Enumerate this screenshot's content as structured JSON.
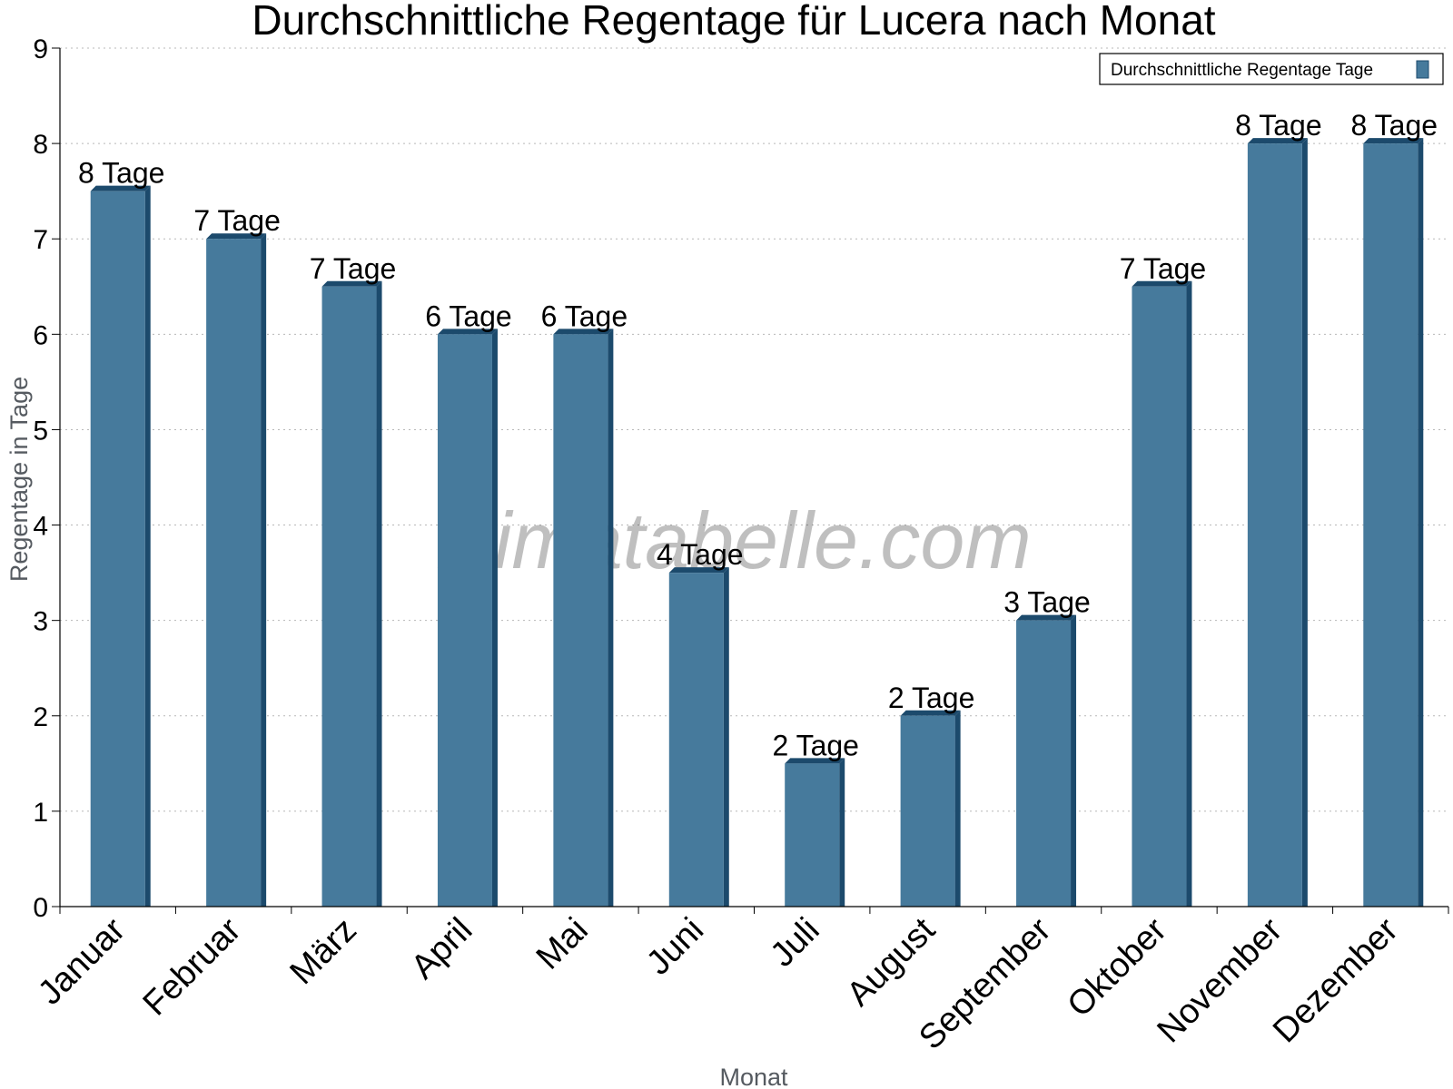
{
  "chart_data": {
    "type": "bar",
    "title": "Durchschnittliche Regentage für Lucera nach Monat",
    "xlabel": "Monat",
    "ylabel": "Regentage in Tage",
    "ylim": [
      0,
      9
    ],
    "yticks": [
      "0",
      "1",
      "2",
      "3",
      "4",
      "5",
      "6",
      "7",
      "8",
      "9"
    ],
    "grid": true,
    "legend_position": "top-right",
    "categories": [
      "Januar",
      "Februar",
      "März",
      "April",
      "Mai",
      "Juni",
      "Juli",
      "August",
      "September",
      "Oktober",
      "November",
      "Dezember"
    ],
    "series": [
      {
        "name": "Durchschnittliche Regentage Tage",
        "values": [
          7.5,
          7,
          6.5,
          6,
          6,
          3.5,
          1.5,
          2,
          3,
          6.5,
          8,
          8
        ],
        "labels": [
          "8 Tage",
          "7 Tage",
          "7 Tage",
          "6 Tage",
          "6 Tage",
          "4 Tage",
          "2 Tage",
          "2 Tage",
          "3 Tage",
          "7 Tage",
          "8 Tage",
          "8 Tage"
        ],
        "color": "#467a9c",
        "side_color": "#1c4a6c"
      }
    ],
    "watermark": "klimatabelle.com"
  }
}
